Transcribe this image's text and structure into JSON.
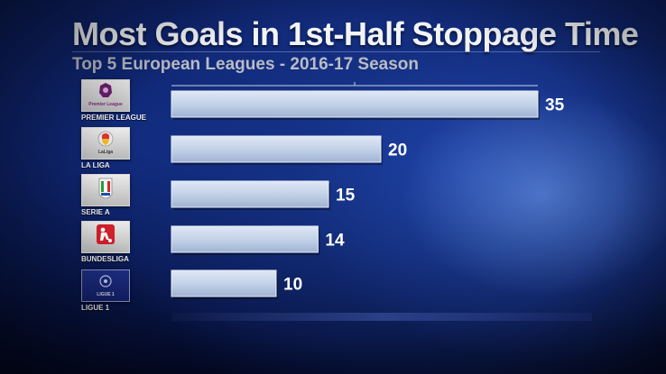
{
  "title": "Most Goals in 1st-Half Stoppage Time",
  "subtitle": "Top 5 European Leagues - 2016-17 Season",
  "logos": [
    {
      "icon": "premier-league-logo",
      "caption": "Premier League"
    },
    {
      "icon": "la-liga-logo",
      "caption": "LaLiga"
    },
    {
      "icon": "serie-a-logo",
      "caption": ""
    },
    {
      "icon": "bundesliga-logo",
      "caption": ""
    },
    {
      "icon": "ligue-1-logo",
      "caption": "LIGUE 1"
    }
  ],
  "colors": {
    "bar": "#c3d2e8",
    "value_text": "#ffffff"
  },
  "chart_data": {
    "type": "bar",
    "orientation": "horizontal",
    "title": "Most Goals in 1st-Half Stoppage Time",
    "subtitle": "Top 5 European Leagues - 2016-17 Season",
    "categories": [
      "PREMIER LEAGUE",
      "LA LIGA",
      "SERIE A",
      "BUNDESLIGA",
      "LIGUE 1"
    ],
    "values": [
      35,
      20,
      15,
      14,
      10
    ],
    "data_labels": [
      "35",
      "20",
      "15",
      "14",
      "10"
    ],
    "xlim": [
      0,
      35
    ],
    "grid": false,
    "legend": "none"
  }
}
